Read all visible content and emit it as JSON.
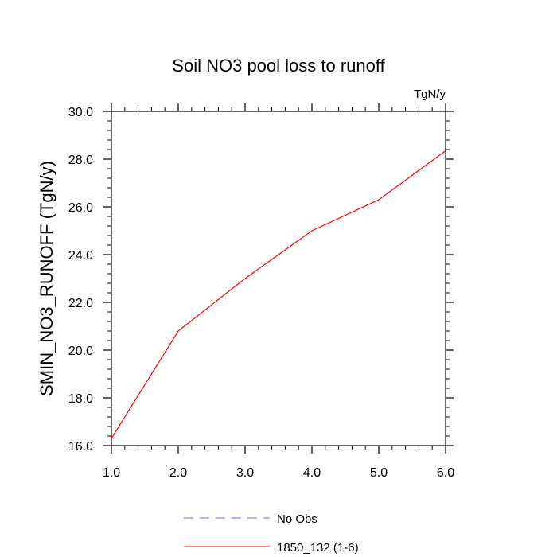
{
  "chart_data": {
    "type": "line",
    "title": "Soil NO3 pool loss to runoff",
    "units_label": "TgN/y",
    "ylabel": "SMIN_NO3_RUNOFF  (TgN/y)",
    "xlabel": "",
    "xlim": [
      1.0,
      6.0
    ],
    "ylim": [
      16.0,
      30.0
    ],
    "x_ticks": [
      "1.0",
      "2.0",
      "3.0",
      "4.0",
      "5.0",
      "6.0"
    ],
    "y_ticks": [
      "16.0",
      "18.0",
      "20.0",
      "22.0",
      "24.0",
      "26.0",
      "28.0",
      "30.0"
    ],
    "grid": false,
    "legend_position": "bottom",
    "series": [
      {
        "name": "1850_132 (1-6)",
        "color": "#ff0000",
        "style": "solid",
        "x": [
          1,
          2,
          3,
          4,
          5,
          6
        ],
        "y": [
          16.3,
          20.8,
          23.0,
          25.0,
          26.3,
          28.35
        ]
      }
    ],
    "legend": [
      {
        "label": "No Obs",
        "color": "#6666ff",
        "style": "dashed"
      },
      {
        "label": "1850_132 (1-6)",
        "color": "#ff0000",
        "style": "solid"
      }
    ]
  }
}
